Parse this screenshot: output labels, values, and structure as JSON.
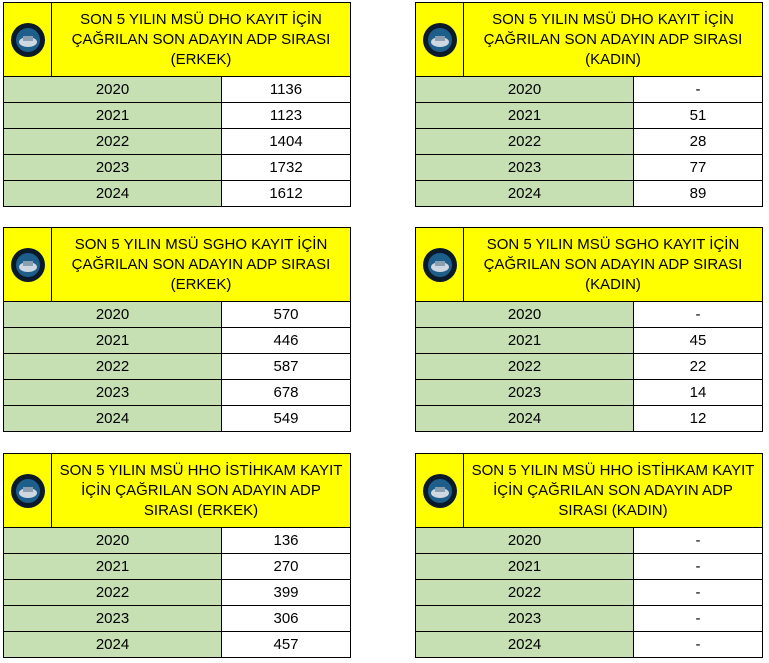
{
  "colors": {
    "header": "#ffff00",
    "year_cell": "#c6e0b4"
  },
  "tables": [
    {
      "title": "SON 5 YILIN MSÜ DHO KAYIT İÇİN ÇAĞRILAN SON ADAYIN ADP SIRASI (ERKEK)",
      "rows": [
        [
          "2020",
          "1136"
        ],
        [
          "2021",
          "1123"
        ],
        [
          "2022",
          "1404"
        ],
        [
          "2023",
          "1732"
        ],
        [
          "2024",
          "1612"
        ]
      ]
    },
    {
      "title": "SON 5 YILIN MSÜ DHO KAYIT İÇİN ÇAĞRILAN SON ADAYIN ADP SIRASI (KADIN)",
      "rows": [
        [
          "2020",
          "-"
        ],
        [
          "2021",
          "51"
        ],
        [
          "2022",
          "28"
        ],
        [
          "2023",
          "77"
        ],
        [
          "2024",
          "89"
        ]
      ]
    },
    {
      "title": "SON 5 YILIN MSÜ SGHO KAYIT İÇİN ÇAĞRILAN SON ADAYIN ADP SIRASI (ERKEK)",
      "rows": [
        [
          "2020",
          "570"
        ],
        [
          "2021",
          "446"
        ],
        [
          "2022",
          "587"
        ],
        [
          "2023",
          "678"
        ],
        [
          "2024",
          "549"
        ]
      ]
    },
    {
      "title": "SON 5 YILIN MSÜ SGHO KAYIT İÇİN ÇAĞRILAN SON ADAYIN ADP SIRASI (KADIN)",
      "rows": [
        [
          "2020",
          "-"
        ],
        [
          "2021",
          "45"
        ],
        [
          "2022",
          "22"
        ],
        [
          "2023",
          "14"
        ],
        [
          "2024",
          "12"
        ]
      ]
    },
    {
      "title": "SON 5 YILIN MSÜ HHO İSTİHKAM KAYIT İÇİN ÇAĞRILAN SON ADAYIN ADP SIRASI (ERKEK)",
      "rows": [
        [
          "2020",
          "136"
        ],
        [
          "2021",
          "270"
        ],
        [
          "2022",
          "399"
        ],
        [
          "2023",
          "306"
        ],
        [
          "2024",
          "457"
        ]
      ]
    },
    {
      "title": "SON 5 YILIN MSÜ HHO İSTİHKAM KAYIT İÇİN ÇAĞRILAN SON ADAYIN ADP SIRASI (KADIN)",
      "rows": [
        [
          "2020",
          "-"
        ],
        [
          "2021",
          "-"
        ],
        [
          "2022",
          "-"
        ],
        [
          "2023",
          "-"
        ],
        [
          "2024",
          "-"
        ]
      ]
    }
  ]
}
